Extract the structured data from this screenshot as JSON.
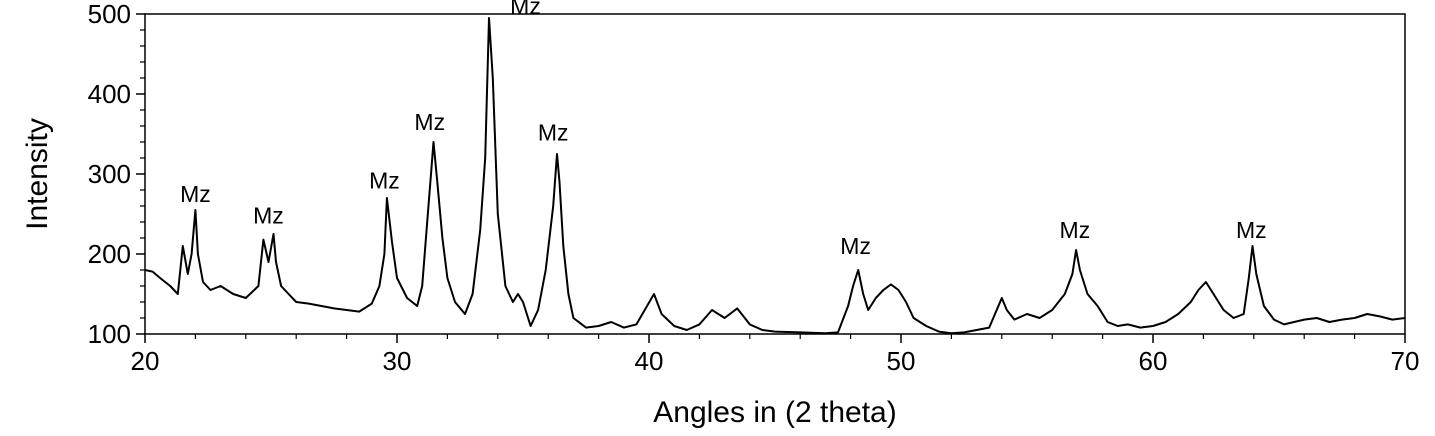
{
  "chart_data": {
    "type": "line",
    "title": "",
    "xlabel": "Angles in (2 theta)",
    "ylabel": "Intensity",
    "xlim": [
      20,
      70
    ],
    "ylim": [
      100,
      500
    ],
    "x_ticks": [
      20,
      30,
      40,
      50,
      60,
      70
    ],
    "x_minor_step": 2,
    "y_ticks": [
      100,
      200,
      300,
      400,
      500
    ],
    "y_minor_step": 20,
    "grid": false,
    "legend": "none",
    "line_color": "#000000",
    "series": [
      {
        "x": [
          20.0,
          20.3,
          20.6,
          21.0,
          21.3,
          21.5,
          21.7,
          21.85,
          22.0,
          22.1,
          22.3,
          22.6,
          23.0,
          23.5,
          24.0,
          24.5,
          24.7,
          24.9,
          25.1,
          25.2,
          25.4,
          25.7,
          26.0,
          26.5,
          27.0,
          27.5,
          28.0,
          28.5,
          29.0,
          29.3,
          29.5,
          29.6,
          29.8,
          30.0,
          30.4,
          30.8,
          31.0,
          31.2,
          31.35,
          31.45,
          31.6,
          31.8,
          32.0,
          32.3,
          32.7,
          33.0,
          33.3,
          33.5,
          33.65,
          33.8,
          34.0,
          34.3,
          34.6,
          34.8,
          35.0,
          35.3,
          35.6,
          35.9,
          36.2,
          36.35,
          36.45,
          36.6,
          36.8,
          37.0,
          37.5,
          38.0,
          38.5,
          39.0,
          39.5,
          40.2,
          40.5,
          41.0,
          41.5,
          42.0,
          42.5,
          43.0,
          43.5,
          44.0,
          44.5,
          45.0,
          46.0,
          47.0,
          47.5,
          47.9,
          48.1,
          48.3,
          48.5,
          48.7,
          49.0,
          49.3,
          49.6,
          49.9,
          50.2,
          50.5,
          51.0,
          51.5,
          52.0,
          52.5,
          53.0,
          53.5,
          54.0,
          54.2,
          54.5,
          55.0,
          55.5,
          56.0,
          56.5,
          56.8,
          56.95,
          57.1,
          57.4,
          57.8,
          58.2,
          58.6,
          59.0,
          59.5,
          60.0,
          60.5,
          61.0,
          61.5,
          61.8,
          62.1,
          62.4,
          62.8,
          63.2,
          63.6,
          63.8,
          63.95,
          64.1,
          64.4,
          64.8,
          65.2,
          65.6,
          66.0,
          66.5,
          67.0,
          67.5,
          68.0,
          68.5,
          69.0,
          69.5,
          70.0
        ],
        "y": [
          180,
          178,
          170,
          160,
          150,
          210,
          175,
          200,
          255,
          200,
          165,
          155,
          160,
          150,
          145,
          160,
          218,
          190,
          225,
          190,
          160,
          150,
          140,
          138,
          135,
          132,
          130,
          128,
          138,
          160,
          200,
          270,
          215,
          170,
          145,
          135,
          160,
          240,
          300,
          340,
          290,
          220,
          170,
          140,
          125,
          150,
          230,
          320,
          495,
          420,
          250,
          160,
          140,
          150,
          140,
          110,
          130,
          180,
          260,
          325,
          290,
          210,
          150,
          120,
          108,
          110,
          115,
          108,
          112,
          150,
          125,
          110,
          105,
          112,
          130,
          120,
          132,
          112,
          105,
          103,
          102,
          101,
          102,
          135,
          160,
          180,
          150,
          130,
          145,
          155,
          162,
          155,
          140,
          120,
          110,
          103,
          101,
          102,
          105,
          108,
          145,
          130,
          118,
          125,
          120,
          130,
          150,
          175,
          205,
          180,
          150,
          135,
          115,
          110,
          112,
          108,
          110,
          115,
          125,
          140,
          155,
          165,
          150,
          130,
          120,
          125,
          170,
          210,
          175,
          135,
          118,
          112,
          115,
          118,
          120,
          115,
          118,
          120,
          125,
          122,
          118,
          120
        ]
      }
    ],
    "annotations": [
      {
        "text": "Mz",
        "x": 22.0,
        "y": 255
      },
      {
        "text": "Mz",
        "x": 24.9,
        "y": 228
      },
      {
        "text": "Mz",
        "x": 29.5,
        "y": 272
      },
      {
        "text": "Mz",
        "x": 31.3,
        "y": 345
      },
      {
        "text": "Mz",
        "x": 35.1,
        "y": 490
      },
      {
        "text": "Mz",
        "x": 36.2,
        "y": 332
      },
      {
        "text": "Mz",
        "x": 48.2,
        "y": 190
      },
      {
        "text": "Mz",
        "x": 56.9,
        "y": 210
      },
      {
        "text": "Mz",
        "x": 63.9,
        "y": 210
      }
    ]
  }
}
